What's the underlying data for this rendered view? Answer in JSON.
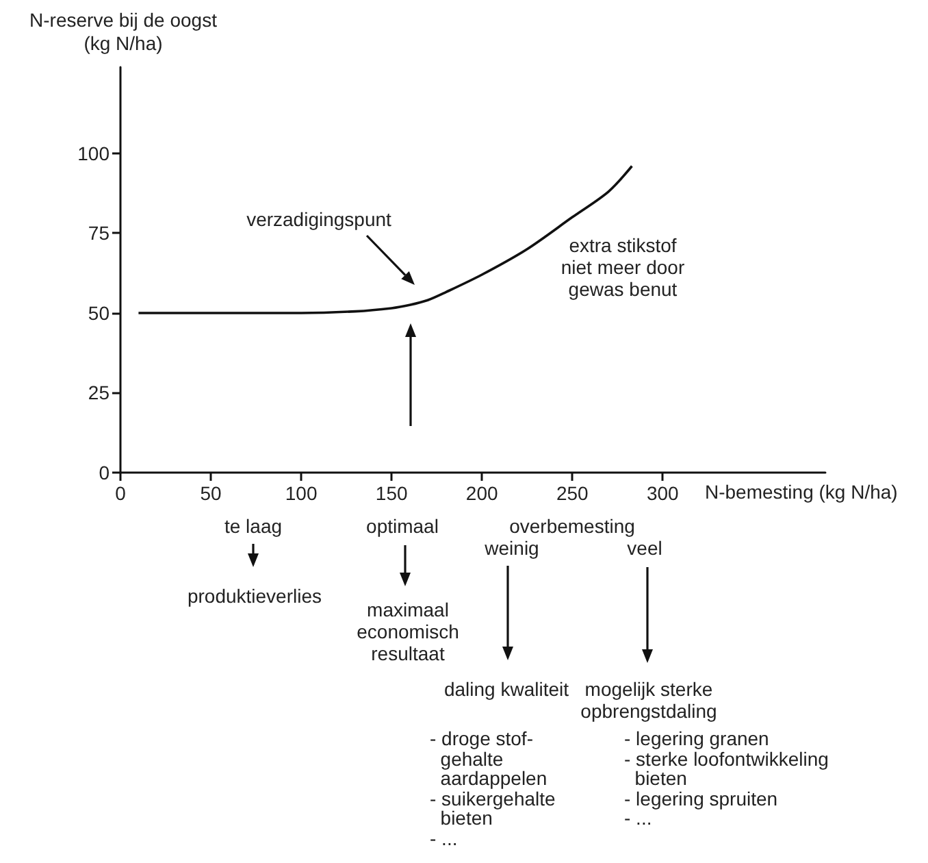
{
  "chart_data": {
    "type": "line",
    "ylabel": "N-reserve bij de oogst\n(kg N/ha)",
    "xlabel": "N-bemesting (kg N/ha)",
    "x": [
      10,
      50,
      100,
      130,
      150,
      160,
      170,
      180,
      200,
      225,
      250,
      270,
      283
    ],
    "series": [
      {
        "color": "#111111",
        "values": [
          50,
          50,
          50,
          50.5,
          51.5,
          52.5,
          54,
          56.5,
          62,
          70,
          80,
          88,
          96
        ]
      }
    ],
    "xlim": [
      0,
      390
    ],
    "xticks": [
      0,
      50,
      100,
      150,
      200,
      250,
      300
    ],
    "ylim": [
      0,
      127
    ],
    "yticks": [
      0,
      25,
      50,
      75,
      100
    ],
    "grid": false,
    "marker": "none",
    "line_style": "solid",
    "annotations": [
      "verzadigingspunt",
      "extra stikstof\nniet meer door\ngewas benut",
      "te laag",
      "produktieverlies",
      "optimaal",
      "maximaal\neconomisch\nresultaat",
      "overbemesting",
      "weinig",
      "veel",
      "daling kwaliteit",
      "mogelijk sterke\nopbrengstdaling",
      "- droge stof-\n  gehalte\n  aardappelen\n- suikergehalte\n  bieten\n- ...",
      "- legering granen\n- sterke loofontwikkeling\n  bieten\n- legering spruiten\n- ..."
    ]
  }
}
